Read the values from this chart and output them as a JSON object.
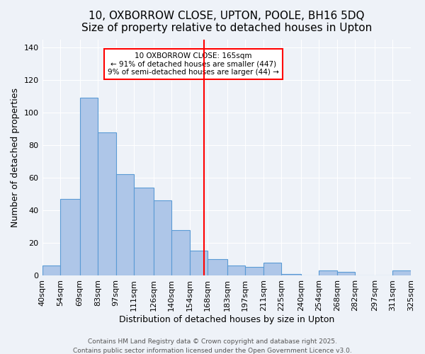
{
  "title": "10, OXBORROW CLOSE, UPTON, POOLE, BH16 5DQ",
  "subtitle": "Size of property relative to detached houses in Upton",
  "xlabel": "Distribution of detached houses by size in Upton",
  "ylabel": "Number of detached properties",
  "bar_labels": [
    "40sqm",
    "54sqm",
    "69sqm",
    "83sqm",
    "97sqm",
    "111sqm",
    "126sqm",
    "140sqm",
    "154sqm",
    "168sqm",
    "183sqm",
    "197sqm",
    "211sqm",
    "225sqm",
    "240sqm",
    "254sqm",
    "268sqm",
    "282sqm",
    "297sqm",
    "311sqm",
    "325sqm"
  ],
  "bin_edges": [
    40,
    54,
    69,
    83,
    97,
    111,
    126,
    140,
    154,
    168,
    183,
    197,
    211,
    225,
    240,
    254,
    268,
    282,
    297,
    311,
    325
  ],
  "hist_values": [
    6,
    47,
    109,
    88,
    62,
    54,
    46,
    28,
    15,
    10,
    6,
    5,
    8,
    1,
    0,
    3,
    2,
    0,
    0,
    3
  ],
  "bar_color": "#aec6e8",
  "bar_edgecolor": "#5b9bd5",
  "vline_x": 165,
  "vline_color": "red",
  "ylim": [
    0,
    145
  ],
  "yticks": [
    0,
    20,
    40,
    60,
    80,
    100,
    120,
    140
  ],
  "annotation_title": "10 OXBORROW CLOSE: 165sqm",
  "annotation_line1": "← 91% of detached houses are smaller (447)",
  "annotation_line2": "9% of semi-detached houses are larger (44) →",
  "annotation_box_color": "#ffffff",
  "annotation_box_edgecolor": "red",
  "footer1": "Contains HM Land Registry data © Crown copyright and database right 2025.",
  "footer2": "Contains public sector information licensed under the Open Government Licence v3.0.",
  "bg_color": "#eef2f8",
  "title_fontsize": 11,
  "axis_label_fontsize": 9,
  "tick_fontsize": 8,
  "footer_fontsize": 6.5
}
